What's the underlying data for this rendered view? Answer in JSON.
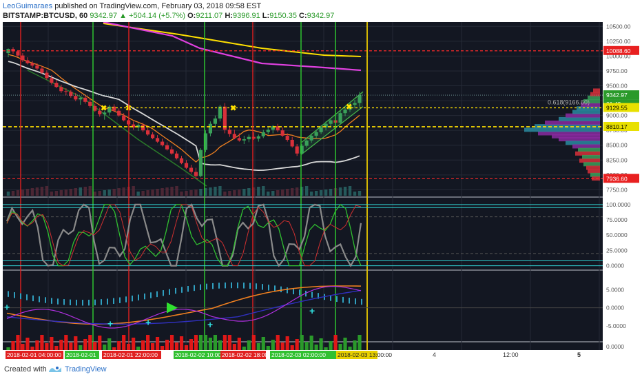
{
  "header": {
    "author": "LeoGuimaraes",
    "published_text": "published on TradingView.com, February 03, 2018 09:58 EST",
    "symbol": "BITSTAMP:BTCUSD, 60",
    "last": "9342.97",
    "change": "+504.14 (+5.7%)",
    "o_label": "O:",
    "o_val": "9211.07",
    "h_label": "H:",
    "h_val": "9396.91",
    "l_label": "L:",
    "l_val": "9150.35",
    "c_label": "C:",
    "c_val": "9342.97"
  },
  "footer": {
    "created_with": "Created with",
    "brand": "TradingView"
  },
  "colors": {
    "background": "#131722",
    "grid": "#252a36",
    "up": "#3aa05a",
    "down": "#d8303a",
    "yellow": "#ffe000",
    "red_level": "#ff2a2a",
    "magenta": "#e040e0",
    "orange": "#f08020",
    "white_ma": "#d8d8d8",
    "cyan": "#30d0d0"
  },
  "chart_data": [
    {
      "type": "candlestick",
      "panel": "price",
      "y_ticks": [
        "10500.00",
        "10250.00",
        "10000.00",
        "9750.00",
        "9500.00",
        "9250.00",
        "9000.00",
        "8750.00",
        "8500.00",
        "8250.00",
        "8000.00",
        "7750.00"
      ],
      "ylim": [
        7650,
        10550
      ],
      "level_labels": [
        {
          "label": "10088.60",
          "value": 10088.6,
          "color": "#e82020"
        },
        {
          "label": "9342.97",
          "value": 9342.97,
          "color": "#2a9a2a"
        },
        {
          "label": "01:48",
          "value": 9235,
          "color": "#2a9a2a"
        },
        {
          "label": "9129.55",
          "value": 9129.55,
          "color": "#e8e000"
        },
        {
          "label": "8810.17",
          "value": 8810.17,
          "color": "#e8e000"
        },
        {
          "label": "7936.60",
          "value": 7936.6,
          "color": "#e82020"
        }
      ],
      "fib_annotation": "0.618(9166.60)",
      "candles": [
        [
          10050,
          10130,
          9980,
          10120
        ],
        [
          10120,
          10150,
          10040,
          10080
        ],
        [
          10080,
          10100,
          9990,
          10010
        ],
        [
          10010,
          10050,
          9900,
          9930
        ],
        [
          9930,
          9980,
          9860,
          9880
        ],
        [
          9880,
          9920,
          9800,
          9840
        ],
        [
          9840,
          9880,
          9760,
          9790
        ],
        [
          9790,
          9830,
          9700,
          9720
        ],
        [
          9720,
          9760,
          9600,
          9630
        ],
        [
          9630,
          9680,
          9520,
          9550
        ],
        [
          9550,
          9600,
          9460,
          9480
        ],
        [
          9480,
          9520,
          9380,
          9410
        ],
        [
          9410,
          9460,
          9340,
          9400
        ],
        [
          9400,
          9430,
          9300,
          9330
        ],
        [
          9330,
          9380,
          9240,
          9270
        ],
        [
          9270,
          9320,
          9180,
          9300
        ],
        [
          9300,
          9340,
          9200,
          9230
        ],
        [
          9230,
          9280,
          9130,
          9160
        ],
        [
          9160,
          9200,
          9060,
          9080
        ],
        [
          9080,
          9130,
          8980,
          9020
        ],
        [
          9020,
          9080,
          8930,
          9050
        ],
        [
          9050,
          9180,
          9000,
          9150
        ],
        [
          9150,
          9190,
          9060,
          9080
        ],
        [
          9080,
          9120,
          8980,
          9000
        ],
        [
          9000,
          9040,
          8900,
          8920
        ],
        [
          8920,
          8960,
          8820,
          8850
        ],
        [
          8850,
          8900,
          8760,
          8800
        ],
        [
          8800,
          8870,
          8740,
          8840
        ],
        [
          8840,
          8880,
          8720,
          8750
        ],
        [
          8750,
          8800,
          8660,
          8680
        ],
        [
          8680,
          8720,
          8600,
          8620
        ],
        [
          8620,
          8670,
          8540,
          8560
        ],
        [
          8560,
          8610,
          8480,
          8500
        ],
        [
          8500,
          8550,
          8410,
          8430
        ],
        [
          8430,
          8480,
          8340,
          8360
        ],
        [
          8360,
          8400,
          8260,
          8280
        ],
        [
          8280,
          8320,
          8180,
          8200
        ],
        [
          8200,
          8250,
          8100,
          8120
        ],
        [
          8120,
          8170,
          8020,
          8050
        ],
        [
          8050,
          8120,
          7930,
          7980
        ],
        [
          7980,
          8450,
          7960,
          8420
        ],
        [
          8420,
          8750,
          8380,
          8700
        ],
        [
          8700,
          8900,
          8650,
          8860
        ],
        [
          8860,
          9000,
          8800,
          8950
        ],
        [
          8950,
          9180,
          8900,
          9150
        ],
        [
          9150,
          9210,
          8700,
          8760
        ],
        [
          8760,
          8820,
          8640,
          8690
        ],
        [
          8690,
          8760,
          8600,
          8620
        ],
        [
          8620,
          8700,
          8560,
          8580
        ],
        [
          8580,
          8660,
          8520,
          8600
        ],
        [
          8600,
          8680,
          8550,
          8640
        ],
        [
          8640,
          8720,
          8590,
          8610
        ],
        [
          8610,
          8680,
          8560,
          8650
        ],
        [
          8650,
          8760,
          8620,
          8720
        ],
        [
          8720,
          8800,
          8680,
          8760
        ],
        [
          8760,
          8840,
          8700,
          8820
        ],
        [
          8820,
          8860,
          8720,
          8750
        ],
        [
          8750,
          8800,
          8640,
          8660
        ],
        [
          8660,
          8700,
          8560,
          8590
        ],
        [
          8590,
          8640,
          8460,
          8480
        ],
        [
          8480,
          8520,
          8320,
          8360
        ],
        [
          8360,
          8520,
          8340,
          8490
        ],
        [
          8490,
          8620,
          8460,
          8580
        ],
        [
          8580,
          8700,
          8540,
          8660
        ],
        [
          8660,
          8760,
          8620,
          8720
        ],
        [
          8720,
          8830,
          8690,
          8800
        ],
        [
          8800,
          8900,
          8750,
          8860
        ],
        [
          8860,
          8960,
          8810,
          8920
        ],
        [
          8920,
          9000,
          8840,
          8880
        ],
        [
          8880,
          9080,
          8860,
          9040
        ],
        [
          9040,
          9130,
          8990,
          9100
        ],
        [
          9100,
          9220,
          9060,
          9180
        ],
        [
          9180,
          9260,
          9120,
          9211
        ],
        [
          9211,
          9397,
          9150,
          9343
        ]
      ],
      "series": [
        {
          "name": "",
          "color": "#ffe000"
        },
        {
          "name": "",
          "color": "#e040e0"
        },
        {
          "name": "",
          "color": "#f08020"
        },
        {
          "name": "",
          "color": "#d8d8d8"
        },
        {
          "name": "",
          "color": "#2a7a2a"
        }
      ]
    },
    {
      "type": "line",
      "panel": "stoch_rsi",
      "y_ticks": [
        "100.0000",
        "75.0000",
        "50.0000",
        "25.0000",
        "0.0000"
      ],
      "ylim": [
        -5,
        110
      ],
      "levels": [
        100,
        95,
        80,
        20,
        8,
        0
      ]
    },
    {
      "type": "line",
      "panel": "oscillator",
      "y_ticks": [
        "5.0000",
        "0.0000",
        "-5.0000"
      ],
      "ylim": [
        -9,
        10
      ]
    },
    {
      "type": "bar",
      "panel": "volume",
      "y_ticks": [
        "0.0000"
      ]
    }
  ],
  "time_axis": {
    "labels": [
      {
        "text": "2018-02-01 04:00:00",
        "color": "#e02020"
      },
      {
        "text": "2018-02-01",
        "color": "#30c030"
      },
      {
        "text": "2018-02-01 22:00:00",
        "color": "#e02020"
      },
      {
        "text": "2018-02-02 10:00:00",
        "color": "#30c030"
      },
      {
        "text": "2018-02-02 18:00",
        "color": "#e02020"
      },
      {
        "text": "2018-02-03 02:00:00",
        "color": "#30c030"
      },
      {
        "text": "2018-02-03 13:00:00",
        "color": "#e8d000"
      }
    ],
    "plain_labels": [
      "4",
      "12:00",
      "5"
    ]
  }
}
